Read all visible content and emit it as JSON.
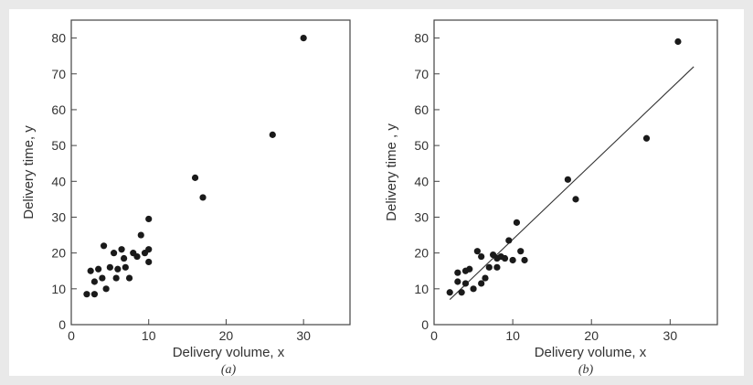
{
  "chart_data": [
    {
      "type": "scatter",
      "caption": "(a)",
      "xlabel": "Delivery volume, x",
      "ylabel": "Delivery time, y",
      "xlim": [
        0,
        36
      ],
      "ylim": [
        0,
        85
      ],
      "xticks": [
        0,
        10,
        20,
        30
      ],
      "yticks": [
        0,
        10,
        20,
        30,
        40,
        50,
        60,
        70,
        80
      ],
      "points": [
        [
          2,
          8.5
        ],
        [
          2.5,
          15
        ],
        [
          3,
          12
        ],
        [
          3,
          8.5
        ],
        [
          3.5,
          15.5
        ],
        [
          4,
          13
        ],
        [
          4.2,
          22
        ],
        [
          4.5,
          10
        ],
        [
          5,
          16
        ],
        [
          5.5,
          20
        ],
        [
          5.8,
          13
        ],
        [
          6,
          15.5
        ],
        [
          6.5,
          21
        ],
        [
          6.8,
          18.5
        ],
        [
          7,
          16
        ],
        [
          7.5,
          13
        ],
        [
          8,
          20
        ],
        [
          8.5,
          19
        ],
        [
          9,
          25
        ],
        [
          9.5,
          20
        ],
        [
          10,
          17.5
        ],
        [
          10,
          29.5
        ],
        [
          10,
          21
        ],
        [
          16,
          41
        ],
        [
          17,
          35.5
        ],
        [
          26,
          53
        ],
        [
          30,
          80
        ]
      ]
    },
    {
      "type": "scatter",
      "caption": "(b)",
      "xlabel": "Delivery volume, x",
      "ylabel": "Delivery time , y",
      "xlim": [
        0,
        36
      ],
      "ylim": [
        0,
        85
      ],
      "xticks": [
        0,
        10,
        20,
        30
      ],
      "yticks": [
        0,
        10,
        20,
        30,
        40,
        50,
        60,
        70,
        80
      ],
      "fit_line": {
        "x": [
          2,
          33
        ],
        "y": [
          7,
          72
        ]
      },
      "points": [
        [
          2,
          9
        ],
        [
          3,
          14.5
        ],
        [
          3,
          12
        ],
        [
          3.5,
          9
        ],
        [
          4,
          11.5
        ],
        [
          4,
          15
        ],
        [
          4.5,
          15.5
        ],
        [
          5,
          10
        ],
        [
          5.5,
          20.5
        ],
        [
          6,
          19
        ],
        [
          6,
          11.5
        ],
        [
          6.5,
          13
        ],
        [
          7,
          16
        ],
        [
          7.5,
          19.5
        ],
        [
          8,
          16
        ],
        [
          8,
          18.5
        ],
        [
          8.5,
          19
        ],
        [
          9,
          18.5
        ],
        [
          9.5,
          23.5
        ],
        [
          10,
          18
        ],
        [
          10.5,
          28.5
        ],
        [
          11,
          20.5
        ],
        [
          11.5,
          18
        ],
        [
          17,
          40.5
        ],
        [
          18,
          35
        ],
        [
          27,
          52
        ],
        [
          31,
          79
        ]
      ]
    }
  ]
}
